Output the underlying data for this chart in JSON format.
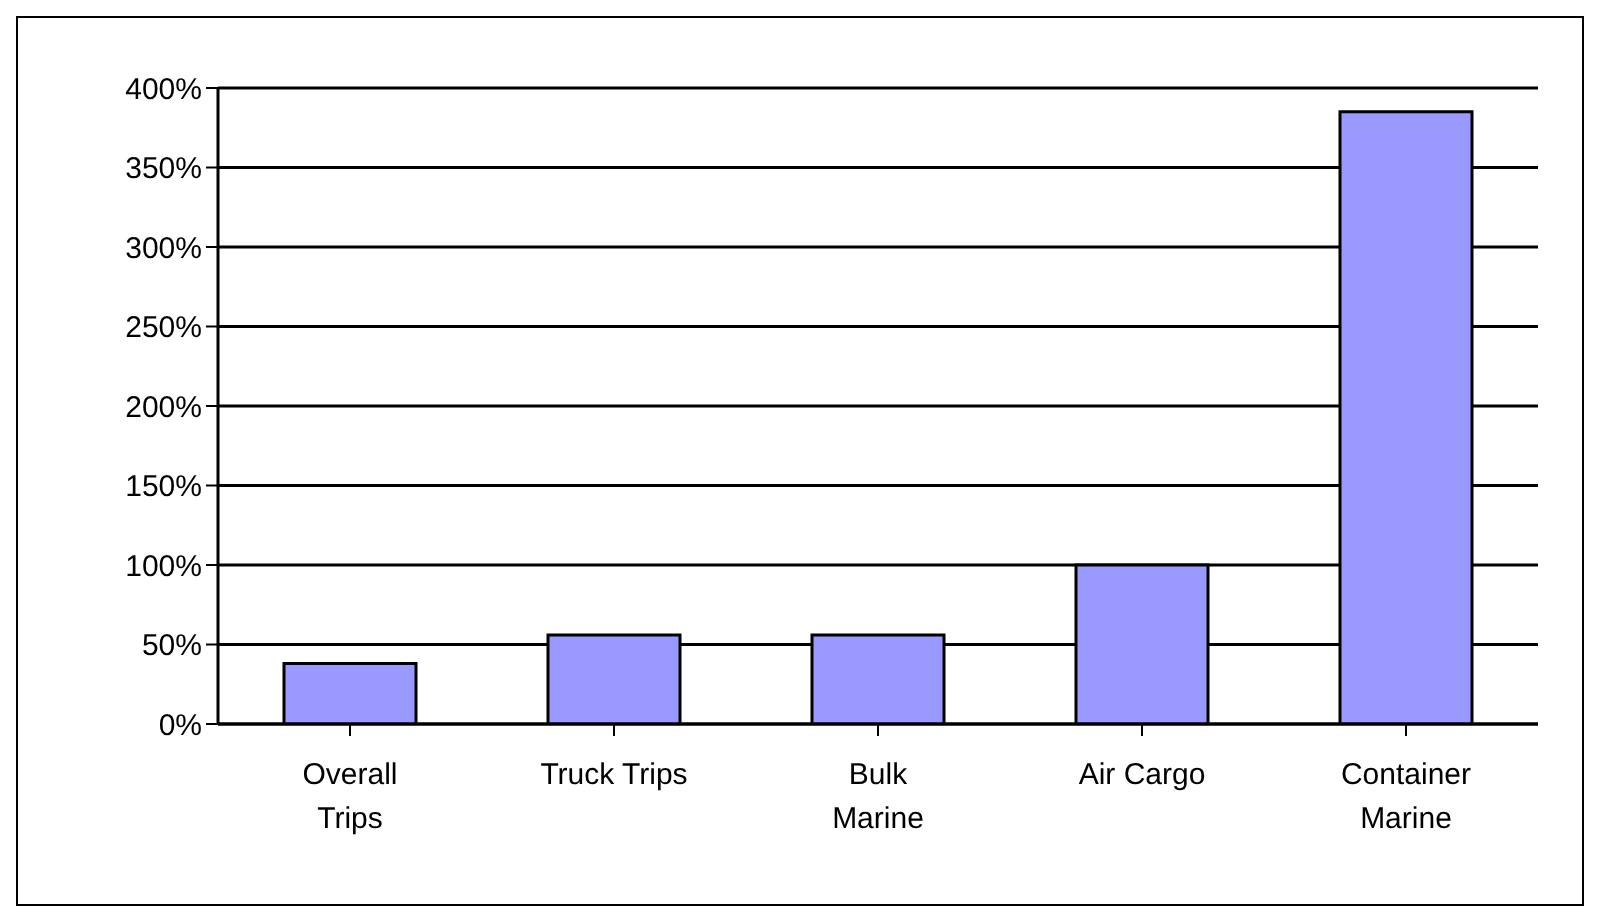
{
  "chart_data": {
    "type": "bar",
    "categories": [
      "Overall Trips",
      "Truck Trips",
      "Bulk Marine",
      "Air Cargo",
      "Container Marine"
    ],
    "values": [
      38,
      56,
      56,
      100,
      385
    ],
    "color": "#9999ff",
    "ylim": [
      0,
      400
    ],
    "yticks": [
      {
        "value": 0,
        "label": "0%"
      },
      {
        "value": 50,
        "label": "50%"
      },
      {
        "value": 100,
        "label": "100%"
      },
      {
        "value": 150,
        "label": "150%"
      },
      {
        "value": 200,
        "label": "200%"
      },
      {
        "value": 250,
        "label": "250%"
      },
      {
        "value": 300,
        "label": "300%"
      },
      {
        "value": 350,
        "label": "350%"
      },
      {
        "value": 400,
        "label": "400%"
      }
    ],
    "grid": "y",
    "legend": false
  }
}
